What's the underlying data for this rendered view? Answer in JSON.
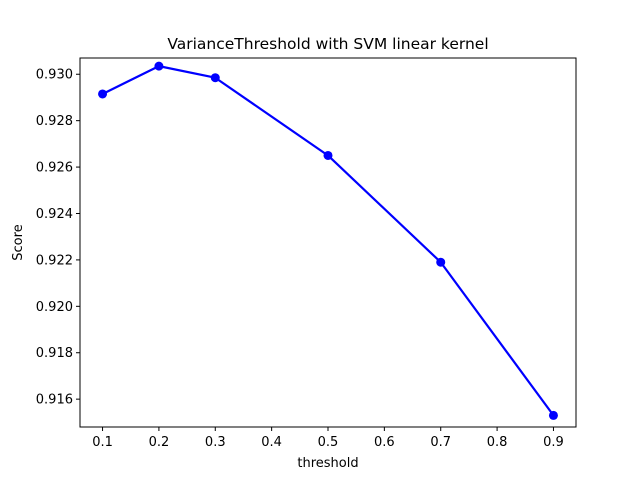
{
  "chart_data": {
    "type": "line",
    "title": "VarianceThreshold with SVM linear kernel",
    "xlabel": "threshold",
    "ylabel": "Score",
    "xlim": [
      0.06,
      0.94
    ],
    "ylim": [
      0.9148,
      0.9307
    ],
    "x_ticks": [
      0.1,
      0.2,
      0.3,
      0.4,
      0.5,
      0.6,
      0.7,
      0.8,
      0.9
    ],
    "x_tick_labels": [
      "0.1",
      "0.2",
      "0.3",
      "0.4",
      "0.5",
      "0.6",
      "0.7",
      "0.8",
      "0.9"
    ],
    "y_ticks": [
      0.916,
      0.918,
      0.92,
      0.922,
      0.924,
      0.926,
      0.928,
      0.93
    ],
    "y_tick_labels": [
      "0.916",
      "0.918",
      "0.920",
      "0.922",
      "0.924",
      "0.926",
      "0.928",
      "0.930"
    ],
    "grid": false,
    "series": [
      {
        "color": "#0000ff",
        "marker": "circle",
        "x": [
          0.1,
          0.2,
          0.3,
          0.5,
          0.7,
          0.9
        ],
        "y": [
          0.92915,
          0.93035,
          0.92985,
          0.9265,
          0.9219,
          0.9153
        ]
      }
    ]
  }
}
